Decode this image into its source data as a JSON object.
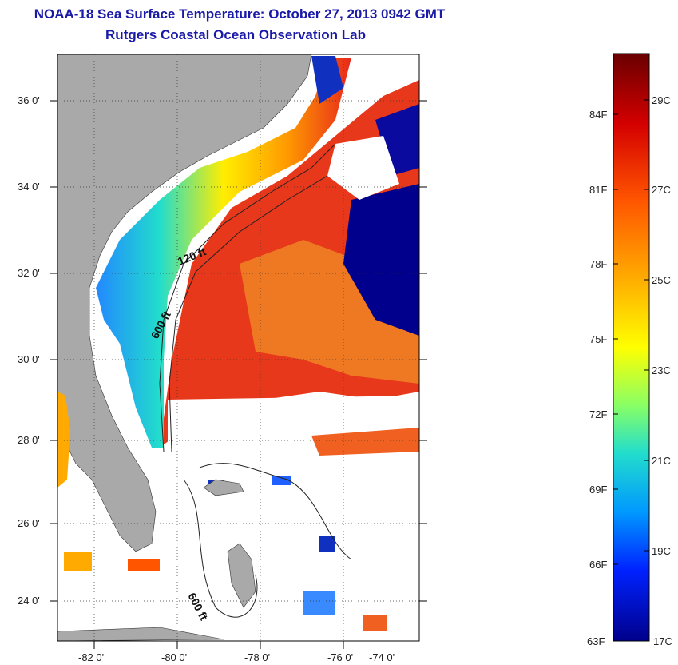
{
  "title": "NOAA-18 Sea Surface Temperature:  October 27, 2013 0942 GMT",
  "subtitle": "Rutgers Coastal Ocean Observation Lab",
  "map": {
    "lat_labels": [
      "36 0'",
      "34 0'",
      "32 0'",
      "30 0'",
      "28 0'",
      "26 0'",
      "24 0'"
    ],
    "lon_labels": [
      "-82 0'",
      "-80 0'",
      "-78 0'",
      "-76 0'",
      "-74 0'"
    ],
    "isobath_labels": [
      "120 ft",
      "600 ft",
      "600 ft"
    ],
    "colors": {
      "land": "#a9a9a9",
      "cloud": "#ffffff",
      "warm": "#e8281c",
      "cold": "#00008c"
    }
  },
  "colorbar": {
    "fahrenheit_labels": [
      "84F",
      "81F",
      "78F",
      "75F",
      "72F",
      "69F",
      "66F",
      "63F"
    ],
    "celsius_labels": [
      "29C",
      "27C",
      "25C",
      "23C",
      "21C",
      "19C",
      "17C"
    ],
    "colors": [
      "#7a0000",
      "#d40000",
      "#ff4400",
      "#ff9900",
      "#ffee00",
      "#a6ff55",
      "#22ddcc",
      "#0099ff",
      "#0033ff",
      "#00008b"
    ]
  }
}
